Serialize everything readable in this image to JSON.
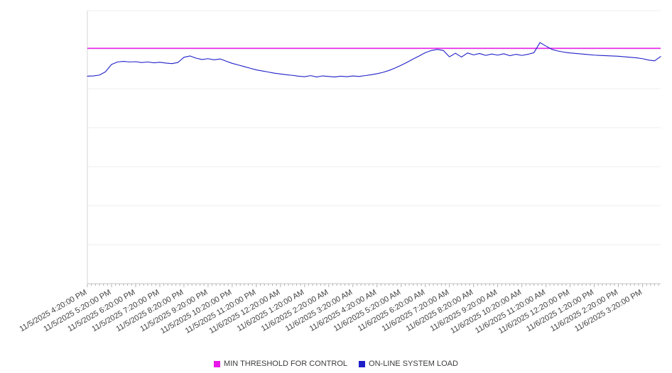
{
  "chart_data": {
    "type": "line",
    "title": "",
    "xlabel": "",
    "ylabel": "",
    "ylim": [
      0,
      100
    ],
    "y_axis_labels": "none",
    "grid": "horizontal",
    "grid_divisions": 7,
    "legend_position": "bottom",
    "point_interval_minutes": 15,
    "categories": [
      "11/5/2025 4:20:00 PM",
      "11/5/2025 5:20:00 PM",
      "11/5/2025 6:20:00 PM",
      "11/5/2025 7:20:00 PM",
      "11/5/2025 8:20:00 PM",
      "11/5/2025 9:20:00 PM",
      "11/5/2025 10:20:00 PM",
      "11/5/2025 11:20:00 PM",
      "11/6/2025 12:20:00 AM",
      "11/6/2025 1:20:00 AM",
      "11/6/2025 2:20:00 AM",
      "11/6/2025 3:20:00 AM",
      "11/6/2025 4:20:00 AM",
      "11/6/2025 5:20:00 AM",
      "11/6/2025 6:20:00 AM",
      "11/6/2025 7:20:00 AM",
      "11/6/2025 8:20:00 AM",
      "11/6/2025 9:20:00 AM",
      "11/6/2025 10:20:00 AM",
      "11/6/2025 11:20:00 AM",
      "11/6/2025 12:20:00 PM",
      "11/6/2025 1:20:00 PM",
      "11/6/2025 2:20:00 PM",
      "11/6/2025 3:20:00 PM"
    ],
    "series": [
      {
        "name": "MIN THRESHOLD FOR CONTROL",
        "type": "threshold",
        "color": "#e816e8",
        "value": 86.2
      },
      {
        "name": "ON-LINE SYSTEM LOAD",
        "type": "line",
        "color": "#1f1fc8",
        "values": [
          76.0,
          76.1,
          76.4,
          77.6,
          80.3,
          81.2,
          81.4,
          81.2,
          81.3,
          81.0,
          81.2,
          80.9,
          81.1,
          80.8,
          80.6,
          81.0,
          82.9,
          83.4,
          82.6,
          82.1,
          82.4,
          82.0,
          82.3,
          81.5,
          80.7,
          80.1,
          79.5,
          78.9,
          78.3,
          77.9,
          77.5,
          77.1,
          76.8,
          76.5,
          76.3,
          76.0,
          75.8,
          76.2,
          75.7,
          76.1,
          75.9,
          75.7,
          76.0,
          75.8,
          76.1,
          75.9,
          76.2,
          76.5,
          76.9,
          77.4,
          78.1,
          79.0,
          80.0,
          81.1,
          82.3,
          83.4,
          84.6,
          85.4,
          85.8,
          85.4,
          83.1,
          84.4,
          83.0,
          84.5,
          83.8,
          84.3,
          83.6,
          84.1,
          83.7,
          84.2,
          83.5,
          84.0,
          83.6,
          84.0,
          84.6,
          88.3,
          87.0,
          85.8,
          85.2,
          84.8,
          84.5,
          84.3,
          84.1,
          83.9,
          83.7,
          83.6,
          83.5,
          83.4,
          83.3,
          83.1,
          82.9,
          82.7,
          82.4,
          81.9,
          81.6,
          83.2
        ]
      }
    ]
  },
  "legend": {
    "items": [
      {
        "label": "MIN THRESHOLD FOR CONTROL",
        "color": "#e816e8"
      },
      {
        "label": "ON-LINE SYSTEM LOAD",
        "color": "#1f1fc8"
      }
    ]
  }
}
